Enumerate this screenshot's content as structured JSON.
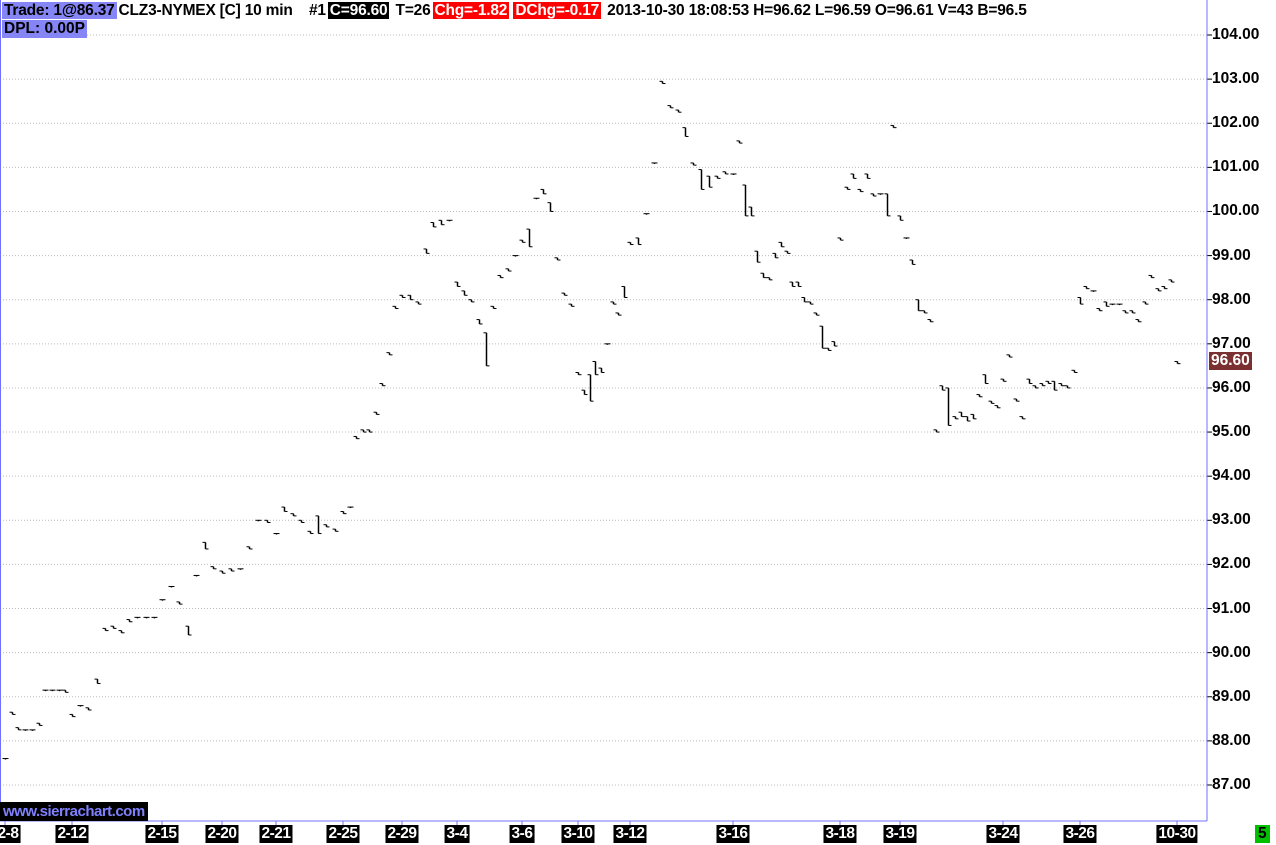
{
  "header": {
    "trade": "Trade: 1@86.37",
    "symbol": "CLZ3-NYMEX [C]  10 min",
    "chart_num": "#1",
    "close": "C=96.60",
    "ticks": "T=26",
    "chg": "Chg=-1.82",
    "dchg": "DChg=-0.17",
    "info": "2013-10-30 18:08:53 H=96.62 L=96.59 O=96.61 V=43 B=96.5",
    "dpl": "DPL: 0.00P"
  },
  "watermark": "www.sierrachart.com",
  "status_badge": "5",
  "colors": {
    "trade_bg": "#8585f5",
    "chg_bg": "#ff0000",
    "current_price_bg": "#7a3030",
    "bars": "#000000",
    "grid": "#bbbbbb",
    "axis": "#7070ff",
    "badge": "#00c000"
  },
  "chart_data": {
    "type": "ohlc",
    "current_price": "96.60",
    "ylim": [
      87,
      104
    ],
    "y_ticks": [
      "104.00",
      "103.00",
      "102.00",
      "101.00",
      "100.00",
      "99.00",
      "98.00",
      "97.00",
      "96.00",
      "95.00",
      "94.00",
      "93.00",
      "92.00",
      "91.00",
      "90.00",
      "89.00",
      "88.00",
      "87.00"
    ],
    "grid": true,
    "x_labels": [
      {
        "label": "2-8",
        "bar": 1
      },
      {
        "label": "2-12",
        "bar": 11
      },
      {
        "label": "2-15",
        "bar": 22
      },
      {
        "label": "2-20",
        "bar": 29
      },
      {
        "label": "2-21",
        "bar": 35
      },
      {
        "label": "2-25",
        "bar": 43
      },
      {
        "label": "2-29",
        "bar": 52
      },
      {
        "label": "3-4",
        "bar": 59
      },
      {
        "label": "3-6",
        "bar": 68
      },
      {
        "label": "3-10",
        "bar": 76
      },
      {
        "label": "3-12",
        "bar": 85
      },
      {
        "label": "3-16",
        "bar": 98
      },
      {
        "label": "3-18",
        "bar": 116
      },
      {
        "label": "3-19",
        "bar": 125
      },
      {
        "label": "3-24",
        "bar": 142
      },
      {
        "label": "3-26",
        "bar": 154
      },
      {
        "label": "10-30",
        "bar": 169
      }
    ],
    "bars_high_low": [
      [
        87.6,
        87.6
      ],
      [
        88.65,
        88.6
      ],
      [
        88.3,
        88.25
      ],
      [
        88.25,
        88.25
      ],
      [
        88.25,
        88.25
      ],
      [
        88.4,
        88.35
      ],
      [
        89.15,
        89.15
      ],
      [
        89.15,
        89.15
      ],
      [
        89.15,
        89.15
      ],
      [
        89.15,
        89.1
      ],
      [
        88.6,
        88.55
      ],
      [
        88.8,
        88.8
      ],
      [
        88.75,
        88.7
      ],
      [
        89.4,
        89.3
      ],
      [
        90.55,
        90.5
      ],
      [
        90.6,
        90.55
      ],
      [
        90.5,
        90.45
      ],
      [
        90.75,
        90.7
      ],
      [
        90.8,
        90.8
      ],
      [
        90.8,
        90.8
      ],
      [
        90.8,
        90.8
      ],
      [
        91.2,
        91.2
      ],
      [
        91.5,
        91.5
      ],
      [
        91.15,
        91.1
      ],
      [
        90.6,
        90.4
      ],
      [
        91.75,
        91.75
      ],
      [
        92.5,
        92.35
      ],
      [
        91.95,
        91.9
      ],
      [
        91.85,
        91.8
      ],
      [
        91.9,
        91.85
      ],
      [
        91.9,
        91.9
      ],
      [
        92.4,
        92.35
      ],
      [
        93.0,
        93.0
      ],
      [
        93.0,
        92.95
      ],
      [
        92.7,
        92.7
      ],
      [
        93.3,
        93.2
      ],
      [
        93.15,
        93.1
      ],
      [
        93.0,
        92.95
      ],
      [
        92.75,
        92.7
      ],
      [
        93.1,
        92.7
      ],
      [
        92.9,
        92.85
      ],
      [
        92.8,
        92.75
      ],
      [
        93.2,
        93.15
      ],
      [
        93.3,
        93.3
      ],
      [
        94.9,
        94.85
      ],
      [
        95.05,
        95.0
      ],
      [
        95.05,
        95.0
      ],
      [
        95.45,
        95.4
      ],
      [
        96.1,
        96.05
      ],
      [
        96.8,
        96.75
      ],
      [
        97.85,
        97.8
      ],
      [
        98.1,
        98.05
      ],
      [
        98.1,
        98.0
      ],
      [
        97.95,
        97.9
      ],
      [
        99.15,
        99.05
      ],
      [
        99.75,
        99.65
      ],
      [
        99.8,
        99.7
      ],
      [
        99.8,
        99.8
      ],
      [
        98.4,
        98.3
      ],
      [
        98.2,
        98.1
      ],
      [
        98.0,
        97.95
      ],
      [
        97.55,
        97.45
      ],
      [
        97.25,
        96.5
      ],
      [
        97.85,
        97.8
      ],
      [
        98.55,
        98.5
      ],
      [
        98.7,
        98.65
      ],
      [
        99.0,
        99.0
      ],
      [
        99.35,
        99.3
      ],
      [
        99.6,
        99.2
      ],
      [
        100.3,
        100.3
      ],
      [
        100.5,
        100.4
      ],
      [
        100.2,
        100.0
      ],
      [
        98.95,
        98.9
      ],
      [
        98.15,
        98.1
      ],
      [
        97.9,
        97.85
      ],
      [
        96.35,
        96.3
      ],
      [
        95.95,
        95.85
      ],
      [
        96.3,
        95.7
      ],
      [
        96.6,
        96.3
      ],
      [
        96.45,
        96.35
      ],
      [
        97.0,
        97.0
      ],
      [
        97.95,
        97.9
      ],
      [
        97.7,
        97.65
      ],
      [
        98.3,
        98.05
      ],
      [
        99.3,
        99.25
      ],
      [
        99.4,
        99.25
      ],
      [
        99.95,
        99.95
      ],
      [
        101.1,
        101.1
      ],
      [
        102.95,
        102.9
      ],
      [
        102.4,
        102.35
      ],
      [
        102.3,
        102.25
      ],
      [
        101.9,
        101.7
      ],
      [
        101.1,
        101.05
      ],
      [
        100.95,
        100.5
      ],
      [
        100.8,
        100.55
      ],
      [
        100.8,
        100.75
      ],
      [
        100.9,
        100.85
      ],
      [
        100.85,
        100.85
      ],
      [
        101.6,
        101.55
      ],
      [
        100.6,
        99.9
      ],
      [
        100.1,
        99.9
      ],
      [
        99.1,
        98.85
      ],
      [
        98.6,
        98.5
      ],
      [
        98.5,
        98.45
      ],
      [
        99.05,
        98.95
      ],
      [
        99.3,
        99.2
      ],
      [
        99.1,
        99.05
      ],
      [
        98.4,
        98.3
      ],
      [
        98.4,
        98.3
      ],
      [
        98.05,
        97.95
      ],
      [
        97.95,
        97.9
      ],
      [
        97.7,
        97.65
      ],
      [
        97.4,
        96.9
      ],
      [
        96.9,
        96.85
      ],
      [
        97.05,
        96.95
      ],
      [
        99.4,
        99.35
      ],
      [
        100.55,
        100.5
      ],
      [
        100.85,
        100.75
      ],
      [
        100.5,
        100.45
      ],
      [
        100.85,
        100.75
      ],
      [
        100.4,
        100.35
      ],
      [
        100.4,
        100.4
      ],
      [
        100.4,
        99.9
      ],
      [
        101.95,
        101.9
      ],
      [
        99.9,
        99.8
      ],
      [
        99.4,
        99.4
      ],
      [
        98.9,
        98.8
      ],
      [
        98.0,
        97.75
      ],
      [
        97.75,
        97.7
      ],
      [
        97.55,
        97.5
      ],
      [
        95.05,
        95.0
      ],
      [
        96.05,
        95.95
      ],
      [
        96.0,
        95.15
      ],
      [
        95.35,
        95.3
      ],
      [
        95.45,
        95.35
      ],
      [
        95.35,
        95.25
      ],
      [
        95.4,
        95.3
      ],
      [
        95.85,
        95.8
      ],
      [
        96.3,
        96.1
      ],
      [
        95.7,
        95.65
      ],
      [
        95.6,
        95.55
      ],
      [
        96.2,
        96.15
      ],
      [
        96.75,
        96.7
      ],
      [
        95.75,
        95.7
      ],
      [
        95.35,
        95.3
      ],
      [
        96.2,
        96.1
      ],
      [
        96.05,
        96.0
      ],
      [
        96.1,
        96.05
      ],
      [
        96.15,
        96.1
      ],
      [
        96.15,
        95.95
      ],
      [
        96.1,
        96.05
      ],
      [
        96.05,
        96.0
      ],
      [
        96.4,
        96.35
      ],
      [
        98.05,
        97.9
      ],
      [
        98.3,
        98.25
      ],
      [
        98.2,
        98.2
      ],
      [
        97.8,
        97.75
      ],
      [
        97.95,
        97.85
      ],
      [
        97.9,
        97.9
      ],
      [
        97.9,
        97.9
      ],
      [
        97.75,
        97.7
      ],
      [
        97.75,
        97.7
      ],
      [
        97.55,
        97.5
      ],
      [
        97.95,
        97.9
      ],
      [
        98.55,
        98.5
      ],
      [
        98.25,
        98.2
      ],
      [
        98.3,
        98.25
      ],
      [
        98.45,
        98.4
      ],
      [
        96.6,
        96.55
      ]
    ]
  }
}
